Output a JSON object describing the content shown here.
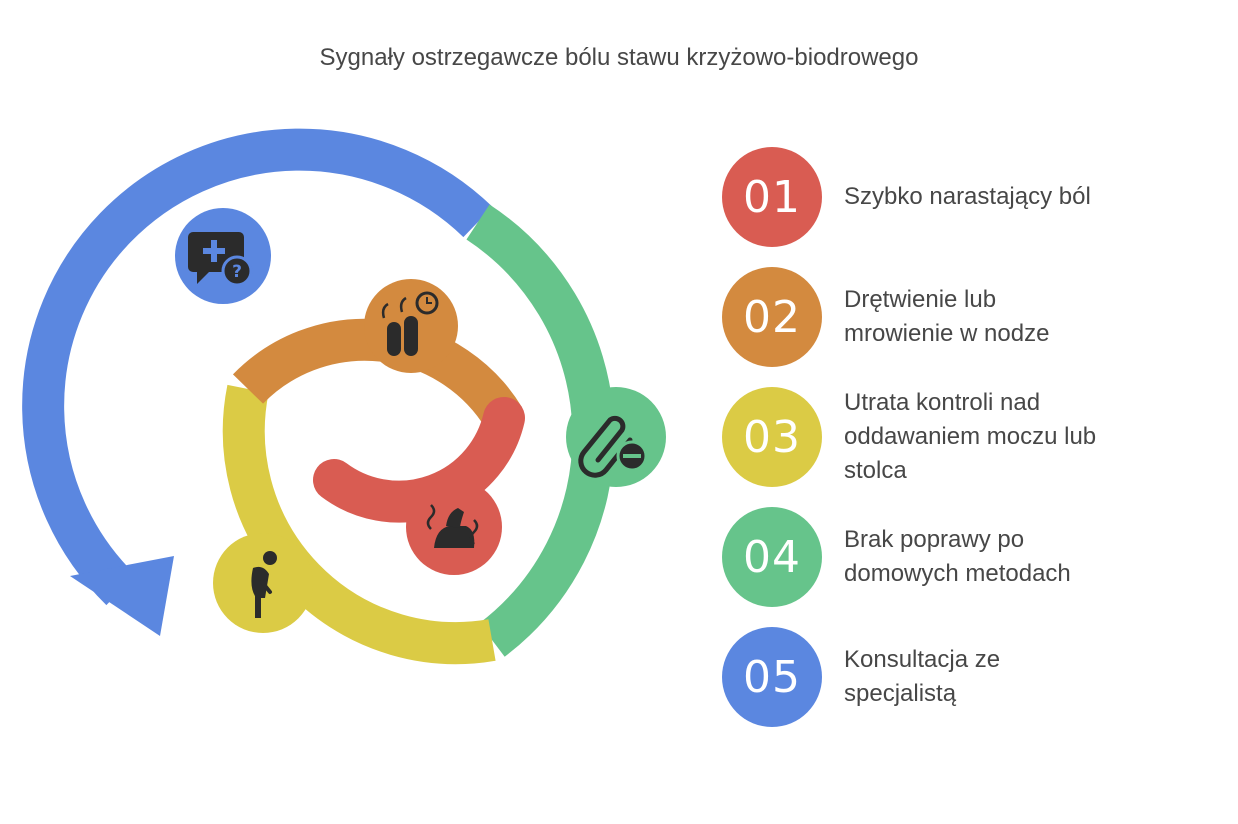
{
  "title": "Sygnały ostrzegawcze bólu stawu krzyżowo-biodrowego",
  "colors": {
    "red": "#D95C52",
    "orange": "#D38A3F",
    "yellow": "#DBCB45",
    "green": "#66C48B",
    "blue": "#5B87E0"
  },
  "steps": [
    {
      "number": "01",
      "label": "Szybko narastający ból",
      "color": "#D95C52",
      "icon": "pain-spine-icon"
    },
    {
      "number": "02",
      "label": "Drętwienie lub mrowienie w nodze",
      "color": "#D38A3F",
      "icon": "numb-fingers-clock-icon"
    },
    {
      "number": "03",
      "label": "Utrata kontroli nad oddawaniem moczu lub stolca",
      "color": "#DBCB45",
      "icon": "bent-person-icon"
    },
    {
      "number": "04",
      "label": "Brak poprawy po domowych metodach",
      "color": "#66C48B",
      "icon": "paperclip-minus-icon"
    },
    {
      "number": "05",
      "label": "Konsultacja ze specjalistą",
      "color": "#5B87E0",
      "icon": "medical-question-icon"
    }
  ]
}
